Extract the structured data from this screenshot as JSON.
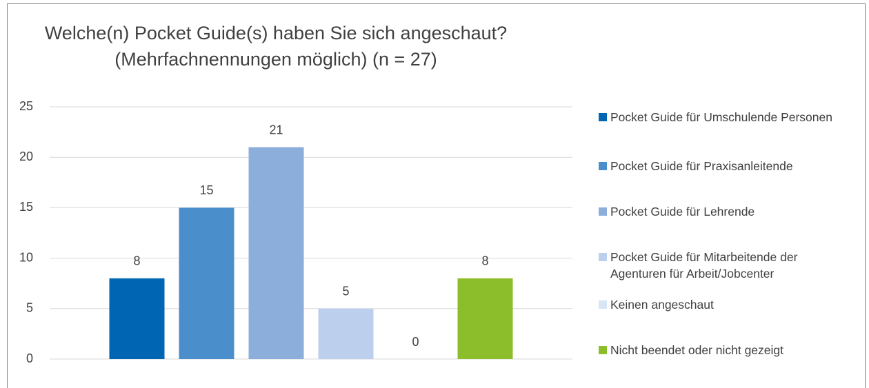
{
  "chart_data": {
    "type": "bar",
    "title": [
      "Welche(n) Pocket Guide(s) haben Sie sich angeschaut?",
      "(Mehrfachnennungen möglich) (n = 27)"
    ],
    "series": [
      {
        "name": "Pocket Guide für Umschulende Personen",
        "color": "#0066b3",
        "values": [
          8
        ]
      },
      {
        "name": "Pocket Guide für Praxisanleitende",
        "color": "#4a8fcc",
        "values": [
          15
        ]
      },
      {
        "name": "Pocket Guide für Lehrende",
        "color": "#8caedb",
        "values": [
          21
        ]
      },
      {
        "name": "Pocket Guide für Mitarbeitende der Agenturen für Arbeit/Jobcenter",
        "color": "#bccfec",
        "values": [
          5
        ]
      },
      {
        "name": "Keinen angeschaut",
        "color": "#d6e6f5",
        "values": [
          0
        ]
      },
      {
        "name": "Nicht beendet oder nicht gezeigt",
        "color": "#8cbd2a",
        "values": [
          8
        ]
      }
    ],
    "ylim": [
      0,
      25
    ],
    "yticks": [
      0,
      5,
      10,
      15,
      20,
      25
    ],
    "grid": true,
    "legend": "right"
  }
}
